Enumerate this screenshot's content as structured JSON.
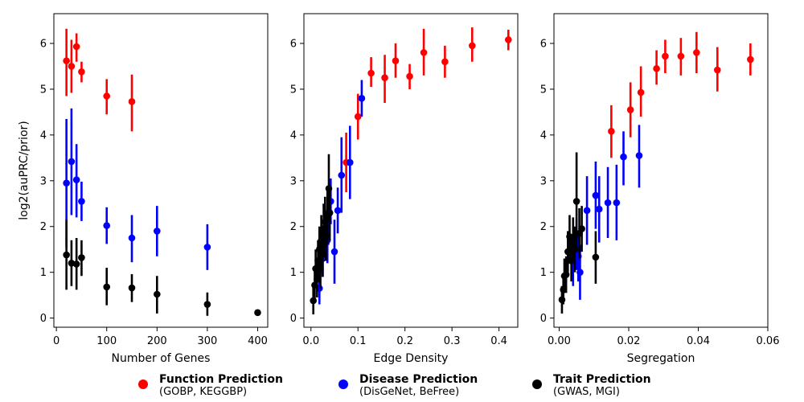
{
  "chart_data": [
    {
      "type": "scatter",
      "xlabel": "Number of Genes",
      "ylabel": "log2(auPRC/prior)",
      "xlim": [
        -5,
        420
      ],
      "ylim": [
        -0.2,
        6.65
      ],
      "xticks": [
        0,
        100,
        200,
        300,
        400
      ],
      "yticks": [
        0,
        1,
        2,
        3,
        4,
        5,
        6
      ],
      "grid": false,
      "series": [
        {
          "name": "Function Prediction",
          "color": "#ff0000",
          "points": [
            {
              "x": 20,
              "y": 5.62,
              "lo": 4.85,
              "hi": 6.32
            },
            {
              "x": 30,
              "y": 5.5,
              "lo": 4.92,
              "hi": 6.08
            },
            {
              "x": 40,
              "y": 5.93,
              "lo": 5.6,
              "hi": 6.22
            },
            {
              "x": 50,
              "y": 5.38,
              "lo": 5.15,
              "hi": 5.6
            },
            {
              "x": 100,
              "y": 4.85,
              "lo": 4.45,
              "hi": 5.22
            },
            {
              "x": 150,
              "y": 4.73,
              "lo": 4.08,
              "hi": 5.32
            }
          ]
        },
        {
          "name": "Disease Prediction",
          "color": "#0000ff",
          "points": [
            {
              "x": 20,
              "y": 2.95,
              "lo": 1.55,
              "hi": 4.35
            },
            {
              "x": 30,
              "y": 3.42,
              "lo": 2.25,
              "hi": 4.58
            },
            {
              "x": 40,
              "y": 3.02,
              "lo": 2.2,
              "hi": 3.8
            },
            {
              "x": 50,
              "y": 2.55,
              "lo": 2.12,
              "hi": 2.98
            },
            {
              "x": 100,
              "y": 2.02,
              "lo": 1.62,
              "hi": 2.42
            },
            {
              "x": 150,
              "y": 1.75,
              "lo": 1.22,
              "hi": 2.25
            },
            {
              "x": 200,
              "y": 1.9,
              "lo": 1.35,
              "hi": 2.45
            },
            {
              "x": 300,
              "y": 1.55,
              "lo": 1.05,
              "hi": 2.05
            }
          ]
        },
        {
          "name": "Trait Prediction",
          "color": "#000000",
          "points": [
            {
              "x": 20,
              "y": 1.38,
              "lo": 0.62,
              "hi": 2.15
            },
            {
              "x": 30,
              "y": 1.2,
              "lo": 0.7,
              "hi": 1.7
            },
            {
              "x": 40,
              "y": 1.18,
              "lo": 0.62,
              "hi": 1.75
            },
            {
              "x": 50,
              "y": 1.32,
              "lo": 0.92,
              "hi": 1.7
            },
            {
              "x": 100,
              "y": 0.68,
              "lo": 0.28,
              "hi": 1.1
            },
            {
              "x": 150,
              "y": 0.66,
              "lo": 0.35,
              "hi": 0.96
            },
            {
              "x": 200,
              "y": 0.52,
              "lo": 0.1,
              "hi": 0.92
            },
            {
              "x": 300,
              "y": 0.3,
              "lo": 0.05,
              "hi": 0.56
            },
            {
              "x": 400,
              "y": 0.12,
              "lo": 0.08,
              "hi": 0.16
            }
          ]
        }
      ]
    },
    {
      "type": "scatter",
      "xlabel": "Edge Density",
      "ylabel": "",
      "xlim": [
        -0.015,
        0.44
      ],
      "ylim": [
        -0.2,
        6.65
      ],
      "xticks": [
        0.0,
        0.1,
        0.2,
        0.3,
        0.4
      ],
      "xticklabels": [
        "0.0",
        "0.1",
        "0.2",
        "0.3",
        "0.4"
      ],
      "yticks": [
        0,
        1,
        2,
        3,
        4,
        5,
        6
      ],
      "grid": false,
      "series": [
        {
          "name": "Function Prediction",
          "color": "#ff0000",
          "points": [
            {
              "x": 0.075,
              "y": 3.4,
              "lo": 2.75,
              "hi": 4.05
            },
            {
              "x": 0.1,
              "y": 4.4,
              "lo": 3.9,
              "hi": 4.9
            },
            {
              "x": 0.128,
              "y": 5.35,
              "lo": 5.05,
              "hi": 5.7
            },
            {
              "x": 0.157,
              "y": 5.25,
              "lo": 4.7,
              "hi": 5.75
            },
            {
              "x": 0.18,
              "y": 5.62,
              "lo": 5.25,
              "hi": 6.0
            },
            {
              "x": 0.21,
              "y": 5.28,
              "lo": 5.0,
              "hi": 5.55
            },
            {
              "x": 0.24,
              "y": 5.8,
              "lo": 5.3,
              "hi": 6.32
            },
            {
              "x": 0.285,
              "y": 5.6,
              "lo": 5.25,
              "hi": 5.95
            },
            {
              "x": 0.343,
              "y": 5.95,
              "lo": 5.6,
              "hi": 6.35
            },
            {
              "x": 0.42,
              "y": 6.08,
              "lo": 5.85,
              "hi": 6.3
            }
          ]
        },
        {
          "name": "Disease Prediction",
          "color": "#0000ff",
          "points": [
            {
              "x": 0.018,
              "y": 0.65,
              "lo": 0.3,
              "hi": 1.0
            },
            {
              "x": 0.02,
              "y": 1.05,
              "lo": 0.6,
              "hi": 1.5
            },
            {
              "x": 0.025,
              "y": 1.3,
              "lo": 0.9,
              "hi": 1.7
            },
            {
              "x": 0.03,
              "y": 1.85,
              "lo": 1.3,
              "hi": 2.4
            },
            {
              "x": 0.035,
              "y": 1.7,
              "lo": 1.2,
              "hi": 2.2
            },
            {
              "x": 0.037,
              "y": 2.1,
              "lo": 1.6,
              "hi": 2.6
            },
            {
              "x": 0.042,
              "y": 2.55,
              "lo": 2.05,
              "hi": 3.05
            },
            {
              "x": 0.05,
              "y": 1.45,
              "lo": 0.75,
              "hi": 2.15
            },
            {
              "x": 0.057,
              "y": 2.35,
              "lo": 1.85,
              "hi": 2.85
            },
            {
              "x": 0.065,
              "y": 3.12,
              "lo": 2.3,
              "hi": 3.95
            },
            {
              "x": 0.083,
              "y": 3.4,
              "lo": 2.6,
              "hi": 4.2
            },
            {
              "x": 0.108,
              "y": 4.8,
              "lo": 4.4,
              "hi": 5.2
            }
          ]
        },
        {
          "name": "Trait Prediction",
          "color": "#000000",
          "points": [
            {
              "x": 0.005,
              "y": 0.38,
              "lo": 0.08,
              "hi": 0.7
            },
            {
              "x": 0.008,
              "y": 0.72,
              "lo": 0.4,
              "hi": 1.05
            },
            {
              "x": 0.01,
              "y": 1.08,
              "lo": 0.7,
              "hi": 1.5
            },
            {
              "x": 0.013,
              "y": 0.85,
              "lo": 0.45,
              "hi": 1.25
            },
            {
              "x": 0.015,
              "y": 1.25,
              "lo": 0.85,
              "hi": 1.7
            },
            {
              "x": 0.018,
              "y": 1.5,
              "lo": 1.05,
              "hi": 2.0
            },
            {
              "x": 0.02,
              "y": 1.1,
              "lo": 0.65,
              "hi": 1.55
            },
            {
              "x": 0.022,
              "y": 1.7,
              "lo": 1.15,
              "hi": 2.25
            },
            {
              "x": 0.025,
              "y": 1.4,
              "lo": 0.9,
              "hi": 1.9
            },
            {
              "x": 0.027,
              "y": 1.95,
              "lo": 1.4,
              "hi": 2.5
            },
            {
              "x": 0.03,
              "y": 2.1,
              "lo": 1.55,
              "hi": 2.65
            },
            {
              "x": 0.032,
              "y": 1.8,
              "lo": 1.25,
              "hi": 2.35
            },
            {
              "x": 0.035,
              "y": 2.2,
              "lo": 1.6,
              "hi": 2.8
            },
            {
              "x": 0.038,
              "y": 2.83,
              "lo": 2.1,
              "hi": 3.58
            },
            {
              "x": 0.04,
              "y": 2.3,
              "lo": 1.7,
              "hi": 2.9
            }
          ]
        }
      ]
    },
    {
      "type": "scatter",
      "xlabel": "Segregation",
      "ylabel": "",
      "xlim": [
        -0.0015,
        0.06
      ],
      "ylim": [
        -0.2,
        6.65
      ],
      "xticks": [
        0.0,
        0.02,
        0.04,
        0.06
      ],
      "xticklabels": [
        "0.00",
        "0.02",
        "0.04",
        "0.06"
      ],
      "yticks": [
        0,
        1,
        2,
        3,
        4,
        5,
        6
      ],
      "grid": false,
      "series": [
        {
          "name": "Function Prediction",
          "color": "#ff0000",
          "points": [
            {
              "x": 0.015,
              "y": 4.08,
              "lo": 3.5,
              "hi": 4.65
            },
            {
              "x": 0.0205,
              "y": 4.55,
              "lo": 3.95,
              "hi": 5.15
            },
            {
              "x": 0.0235,
              "y": 4.93,
              "lo": 4.4,
              "hi": 5.5
            },
            {
              "x": 0.028,
              "y": 5.45,
              "lo": 5.1,
              "hi": 5.85
            },
            {
              "x": 0.0305,
              "y": 5.72,
              "lo": 5.35,
              "hi": 6.08
            },
            {
              "x": 0.035,
              "y": 5.72,
              "lo": 5.3,
              "hi": 6.12
            },
            {
              "x": 0.0395,
              "y": 5.8,
              "lo": 5.35,
              "hi": 6.25
            },
            {
              "x": 0.0455,
              "y": 5.42,
              "lo": 4.95,
              "hi": 5.92
            },
            {
              "x": 0.055,
              "y": 5.65,
              "lo": 5.3,
              "hi": 6.0
            }
          ]
        },
        {
          "name": "Disease Prediction",
          "color": "#0000ff",
          "points": [
            {
              "x": 0.004,
              "y": 1.25,
              "lo": 0.7,
              "hi": 1.8
            },
            {
              "x": 0.005,
              "y": 1.6,
              "lo": 1.05,
              "hi": 2.15
            },
            {
              "x": 0.0055,
              "y": 1.35,
              "lo": 0.8,
              "hi": 1.9
            },
            {
              "x": 0.006,
              "y": 1.0,
              "lo": 0.4,
              "hi": 1.6
            },
            {
              "x": 0.008,
              "y": 2.35,
              "lo": 1.6,
              "hi": 3.1
            },
            {
              "x": 0.0105,
              "y": 2.68,
              "lo": 1.95,
              "hi": 3.42
            },
            {
              "x": 0.0115,
              "y": 2.38,
              "lo": 1.65,
              "hi": 3.1
            },
            {
              "x": 0.014,
              "y": 2.52,
              "lo": 1.75,
              "hi": 3.3
            },
            {
              "x": 0.0165,
              "y": 2.52,
              "lo": 1.7,
              "hi": 3.35
            },
            {
              "x": 0.0185,
              "y": 3.52,
              "lo": 2.9,
              "hi": 4.08
            },
            {
              "x": 0.023,
              "y": 3.55,
              "lo": 2.85,
              "hi": 4.22
            }
          ]
        },
        {
          "name": "Trait Prediction",
          "color": "#000000",
          "points": [
            {
              "x": 0.0008,
              "y": 0.4,
              "lo": 0.1,
              "hi": 0.7
            },
            {
              "x": 0.0012,
              "y": 0.62,
              "lo": 0.3,
              "hi": 0.95
            },
            {
              "x": 0.0015,
              "y": 0.92,
              "lo": 0.55,
              "hi": 1.3
            },
            {
              "x": 0.002,
              "y": 0.95,
              "lo": 0.55,
              "hi": 1.35
            },
            {
              "x": 0.0025,
              "y": 1.45,
              "lo": 1.0,
              "hi": 1.9
            },
            {
              "x": 0.003,
              "y": 1.78,
              "lo": 1.3,
              "hi": 2.25
            },
            {
              "x": 0.0035,
              "y": 1.25,
              "lo": 0.8,
              "hi": 1.7
            },
            {
              "x": 0.004,
              "y": 1.7,
              "lo": 1.2,
              "hi": 2.2
            },
            {
              "x": 0.0045,
              "y": 1.5,
              "lo": 1.0,
              "hi": 2.0
            },
            {
              "x": 0.005,
              "y": 2.55,
              "lo": 1.5,
              "hi": 3.62
            },
            {
              "x": 0.0058,
              "y": 1.85,
              "lo": 1.3,
              "hi": 2.4
            },
            {
              "x": 0.0065,
              "y": 1.95,
              "lo": 1.45,
              "hi": 2.45
            },
            {
              "x": 0.0105,
              "y": 1.33,
              "lo": 0.75,
              "hi": 1.9
            }
          ]
        }
      ]
    }
  ],
  "legend": [
    {
      "name": "Function Prediction",
      "detail": "(GOBP, KEGGBP)",
      "color": "#ff0000"
    },
    {
      "name": "Disease Prediction",
      "detail": "(DisGeNet, BeFree)",
      "color": "#0000ff"
    },
    {
      "name": "Trait Prediction",
      "detail": "(GWAS, MGI)",
      "color": "#000000"
    }
  ]
}
